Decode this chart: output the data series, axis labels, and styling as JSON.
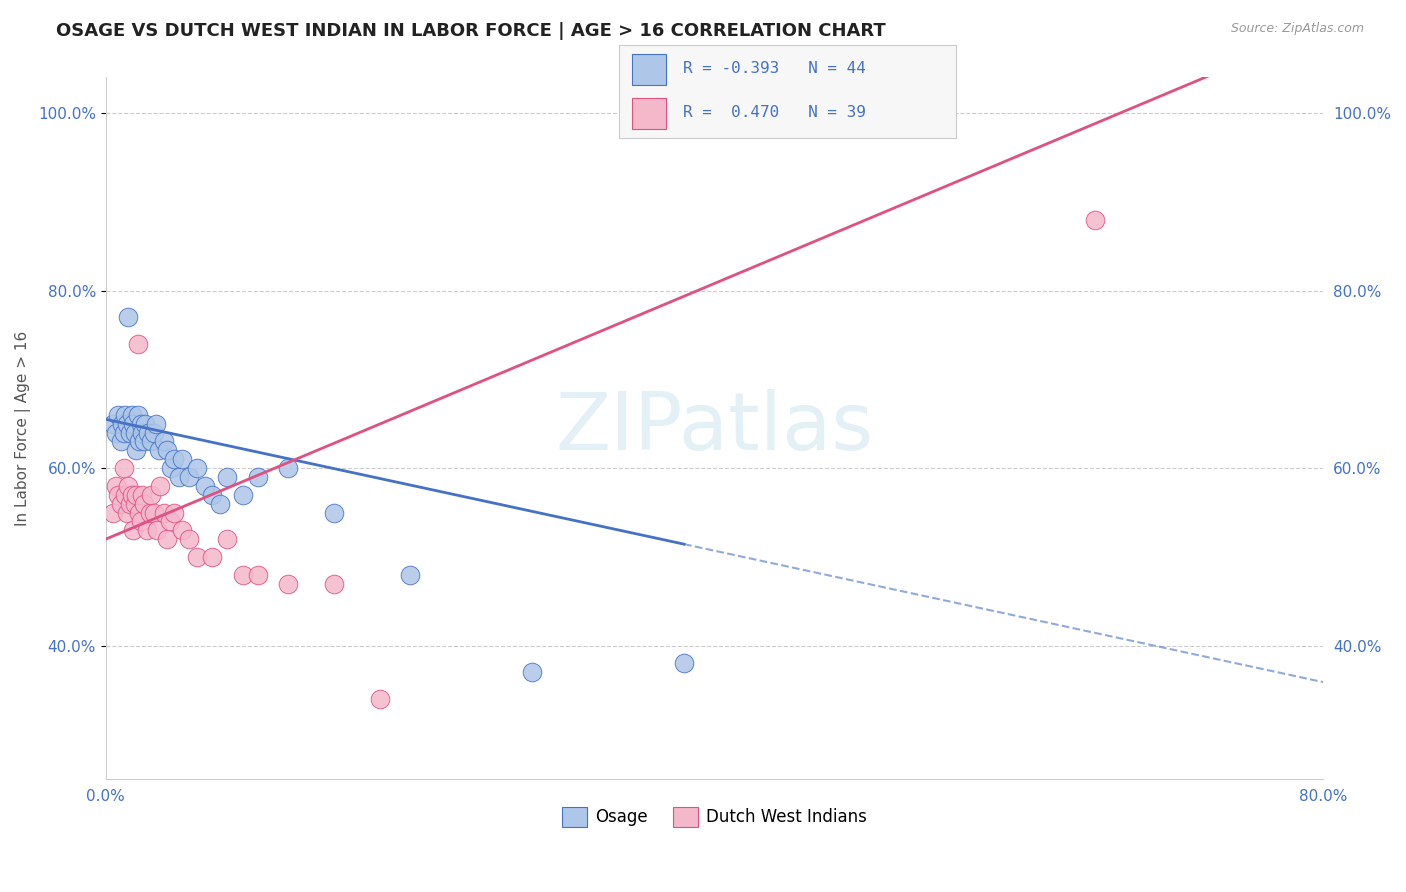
{
  "title": "OSAGE VS DUTCH WEST INDIAN IN LABOR FORCE | AGE > 16 CORRELATION CHART",
  "source": "Source: ZipAtlas.com",
  "ylabel": "In Labor Force | Age > 16",
  "xlim": [
    0.0,
    0.8
  ],
  "ylim": [
    0.25,
    1.04
  ],
  "yticks": [
    0.4,
    0.6,
    0.8,
    1.0
  ],
  "ytick_labels": [
    "40.0%",
    "60.0%",
    "80.0%",
    "100.0%"
  ],
  "xticks": [
    0.0,
    0.8
  ],
  "xtick_labels": [
    "0.0%",
    "80.0%"
  ],
  "osage_R": -0.393,
  "osage_N": 44,
  "dutch_R": 0.47,
  "dutch_N": 39,
  "osage_color": "#aec6e8",
  "dutch_color": "#f4b8cb",
  "osage_line_color": "#4472c4",
  "dutch_line_color": "#e05080",
  "background_color": "#ffffff",
  "grid_color": "#cccccc",
  "title_color": "#222222",
  "legend_text_color": "#4472c4",
  "watermark_color": "#cce4f0",
  "osage_x": [
    0.005,
    0.007,
    0.008,
    0.01,
    0.011,
    0.012,
    0.013,
    0.014,
    0.015,
    0.016,
    0.017,
    0.018,
    0.019,
    0.02,
    0.021,
    0.022,
    0.023,
    0.024,
    0.025,
    0.026,
    0.028,
    0.03,
    0.032,
    0.033,
    0.035,
    0.038,
    0.04,
    0.043,
    0.045,
    0.048,
    0.05,
    0.055,
    0.06,
    0.065,
    0.07,
    0.075,
    0.08,
    0.09,
    0.1,
    0.12,
    0.15,
    0.2,
    0.28,
    0.38
  ],
  "osage_y": [
    0.65,
    0.64,
    0.66,
    0.63,
    0.65,
    0.64,
    0.66,
    0.65,
    0.77,
    0.64,
    0.66,
    0.65,
    0.64,
    0.62,
    0.66,
    0.63,
    0.65,
    0.64,
    0.63,
    0.65,
    0.64,
    0.63,
    0.64,
    0.65,
    0.62,
    0.63,
    0.62,
    0.6,
    0.61,
    0.59,
    0.61,
    0.59,
    0.6,
    0.58,
    0.57,
    0.56,
    0.59,
    0.57,
    0.59,
    0.6,
    0.55,
    0.48,
    0.37,
    0.38
  ],
  "dutch_x": [
    0.005,
    0.007,
    0.008,
    0.01,
    0.012,
    0.013,
    0.014,
    0.015,
    0.016,
    0.017,
    0.018,
    0.019,
    0.02,
    0.021,
    0.022,
    0.023,
    0.024,
    0.025,
    0.027,
    0.029,
    0.03,
    0.032,
    0.034,
    0.036,
    0.038,
    0.04,
    0.042,
    0.045,
    0.05,
    0.055,
    0.06,
    0.07,
    0.08,
    0.09,
    0.1,
    0.12,
    0.15,
    0.18,
    0.65
  ],
  "dutch_y": [
    0.55,
    0.58,
    0.57,
    0.56,
    0.6,
    0.57,
    0.55,
    0.58,
    0.56,
    0.57,
    0.53,
    0.56,
    0.57,
    0.74,
    0.55,
    0.54,
    0.57,
    0.56,
    0.53,
    0.55,
    0.57,
    0.55,
    0.53,
    0.58,
    0.55,
    0.52,
    0.54,
    0.55,
    0.53,
    0.52,
    0.5,
    0.5,
    0.52,
    0.48,
    0.48,
    0.47,
    0.47,
    0.34,
    0.88
  ],
  "osage_line_intercept": 0.655,
  "osage_line_slope": -0.37,
  "dutch_line_intercept": 0.52,
  "dutch_line_slope": 0.72
}
